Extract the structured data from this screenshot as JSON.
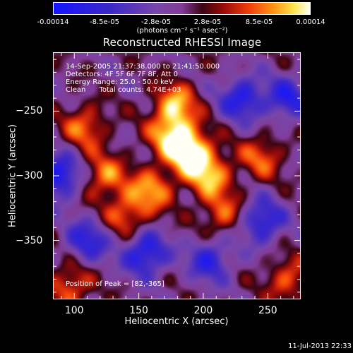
{
  "colorbar": {
    "ticks": [
      "-0.00014",
      "-8.5e-05",
      "-2.8e-05",
      "2.8e-05",
      "8.5e-05",
      "0.00014"
    ],
    "unit_label": "(photons cm⁻² s⁻¹ asec⁻²)"
  },
  "chart_data": {
    "type": "heatmap",
    "title": "Reconstructed RHESSI Image",
    "xlabel": "Heliocentric X (arcsec)",
    "ylabel": "Heliocentric Y (arcsec)",
    "xlim": [
      84,
      275
    ],
    "ylim": [
      -395,
      -205
    ],
    "x_ticks": [
      "100",
      "150",
      "200",
      "250"
    ],
    "y_ticks": [
      "-250",
      "-300",
      "-350"
    ],
    "x_tick_values": [
      100,
      150,
      200,
      250
    ],
    "y_tick_values": [
      -250,
      -300,
      -350
    ],
    "value_range": [
      -0.00014,
      0.00014
    ],
    "colormap": "RHESSI blue-purple-red-orange-yellow-white",
    "peak": [
      82,
      -365
    ],
    "bright_sources": [
      {
        "x": 190,
        "y": -282,
        "intensity": 1.0
      },
      {
        "x": 175,
        "y": -268,
        "intensity": 0.8
      },
      {
        "x": 178,
        "y": -245,
        "intensity": 0.75
      },
      {
        "x": 205,
        "y": -300,
        "intensity": 0.75
      },
      {
        "x": 160,
        "y": -310,
        "intensity": 0.7
      },
      {
        "x": 140,
        "y": -330,
        "intensity": 0.6
      },
      {
        "x": 108,
        "y": -262,
        "intensity": 0.6
      },
      {
        "x": 123,
        "y": -300,
        "intensity": 0.65
      },
      {
        "x": 215,
        "y": -330,
        "intensity": 0.55
      },
      {
        "x": 245,
        "y": -285,
        "intensity": 0.55
      },
      {
        "x": 96,
        "y": -385,
        "intensity": 0.6
      },
      {
        "x": 265,
        "y": -380,
        "intensity": 0.55
      }
    ],
    "dark_sources": [
      {
        "x": 88,
        "y": -300,
        "intensity": -0.9
      },
      {
        "x": 230,
        "y": -240,
        "intensity": -0.8
      },
      {
        "x": 155,
        "y": -360,
        "intensity": -0.9
      },
      {
        "x": 245,
        "y": -335,
        "intensity": -0.8
      },
      {
        "x": 205,
        "y": -365,
        "intensity": -0.7
      },
      {
        "x": 110,
        "y": -350,
        "intensity": -0.7
      },
      {
        "x": 265,
        "y": -240,
        "intensity": -0.7
      }
    ],
    "annotations": [
      "14-Sep-2005 21:37:38.000 to 21:41:50.000",
      "Detectors: 4F 5F 6F 7F 8F, Att 0",
      "Energy Range: 25.0 - 50.0 keV",
      "Clean      Total counts: 4.74E+03",
      "Position of Peak = [82,-365]"
    ]
  },
  "footer": {
    "timestamp": "11-Jul-2013 22:33"
  }
}
